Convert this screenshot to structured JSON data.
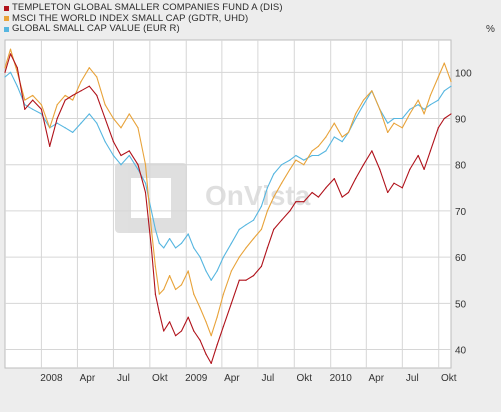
{
  "legend": [
    {
      "label": "TEMPLETON GLOBAL SMALLER COMPANIES FUND A (DIS)",
      "color": "#b0121b"
    },
    {
      "label": "MSCI THE WORLD INDEX SMALL CAP (GDTR, UHD)",
      "color": "#e8a33a"
    },
    {
      "label": "GLOBAL SMALL CAP VALUE (EUR R)",
      "color": "#56b6e0"
    }
  ],
  "unit_label": "%",
  "watermark": "OnVista",
  "chart_data": {
    "type": "line",
    "title": "",
    "xlabel": "",
    "ylabel": "%",
    "x_ticks": [
      "2008",
      "Apr",
      "Jul",
      "Okt",
      "2009",
      "Apr",
      "Jul",
      "Okt",
      "2010",
      "Apr",
      "Jul",
      "Okt"
    ],
    "y_ticks": [
      40,
      50,
      60,
      70,
      80,
      90,
      100
    ],
    "ylim": [
      36,
      107
    ],
    "x_range": [
      "2007-10-01",
      "2010-11-01"
    ],
    "grid": true,
    "legend_position": "top-left",
    "series": [
      {
        "name": "TEMPLETON GLOBAL SMALLER COMPANIES FUND A (DIS)",
        "color": "#b0121b",
        "points": [
          [
            "2007-10-01",
            100
          ],
          [
            "2007-10-15",
            104
          ],
          [
            "2007-11-01",
            101
          ],
          [
            "2007-11-20",
            92
          ],
          [
            "2007-12-10",
            94
          ],
          [
            "2008-01-01",
            92
          ],
          [
            "2008-01-22",
            84
          ],
          [
            "2008-02-10",
            90
          ],
          [
            "2008-03-01",
            94
          ],
          [
            "2008-03-20",
            95
          ],
          [
            "2008-04-10",
            96
          ],
          [
            "2008-05-01",
            97
          ],
          [
            "2008-05-20",
            95
          ],
          [
            "2008-06-10",
            90
          ],
          [
            "2008-07-01",
            85
          ],
          [
            "2008-07-20",
            82
          ],
          [
            "2008-08-10",
            83
          ],
          [
            "2008-09-01",
            80
          ],
          [
            "2008-09-20",
            74
          ],
          [
            "2008-10-05",
            62
          ],
          [
            "2008-10-15",
            52
          ],
          [
            "2008-10-25",
            48
          ],
          [
            "2008-11-05",
            44
          ],
          [
            "2008-11-20",
            46
          ],
          [
            "2008-12-05",
            43
          ],
          [
            "2008-12-20",
            44
          ],
          [
            "2009-01-06",
            47
          ],
          [
            "2009-01-20",
            44
          ],
          [
            "2009-02-05",
            42
          ],
          [
            "2009-02-20",
            39
          ],
          [
            "2009-03-05",
            37
          ],
          [
            "2009-03-20",
            41
          ],
          [
            "2009-04-05",
            45
          ],
          [
            "2009-04-25",
            50
          ],
          [
            "2009-05-15",
            55
          ],
          [
            "2009-06-01",
            55
          ],
          [
            "2009-06-20",
            56
          ],
          [
            "2009-07-10",
            58
          ],
          [
            "2009-07-25",
            62
          ],
          [
            "2009-08-10",
            66
          ],
          [
            "2009-08-30",
            68
          ],
          [
            "2009-09-20",
            70
          ],
          [
            "2009-10-05",
            72
          ],
          [
            "2009-10-25",
            72
          ],
          [
            "2009-11-15",
            74
          ],
          [
            "2009-12-01",
            73
          ],
          [
            "2009-12-20",
            75
          ],
          [
            "2010-01-10",
            77
          ],
          [
            "2010-01-30",
            73
          ],
          [
            "2010-02-15",
            74
          ],
          [
            "2010-03-05",
            77
          ],
          [
            "2010-03-25",
            80
          ],
          [
            "2010-04-15",
            83
          ],
          [
            "2010-05-05",
            79
          ],
          [
            "2010-05-25",
            74
          ],
          [
            "2010-06-10",
            76
          ],
          [
            "2010-07-01",
            75
          ],
          [
            "2010-07-20",
            79
          ],
          [
            "2010-08-10",
            82
          ],
          [
            "2010-08-25",
            79
          ],
          [
            "2010-09-10",
            83
          ],
          [
            "2010-09-30",
            88
          ],
          [
            "2010-10-15",
            90
          ],
          [
            "2010-11-01",
            91
          ]
        ]
      },
      {
        "name": "MSCI THE WORLD INDEX SMALL CAP (GDTR, UHD)",
        "color": "#e8a33a",
        "points": [
          [
            "2007-10-01",
            101
          ],
          [
            "2007-10-15",
            105
          ],
          [
            "2007-11-01",
            100
          ],
          [
            "2007-11-20",
            94
          ],
          [
            "2007-12-10",
            95
          ],
          [
            "2008-01-01",
            93
          ],
          [
            "2008-01-22",
            88
          ],
          [
            "2008-02-10",
            93
          ],
          [
            "2008-03-01",
            95
          ],
          [
            "2008-03-20",
            94
          ],
          [
            "2008-04-10",
            98
          ],
          [
            "2008-05-01",
            101
          ],
          [
            "2008-05-20",
            99
          ],
          [
            "2008-06-10",
            93
          ],
          [
            "2008-07-01",
            90
          ],
          [
            "2008-07-20",
            88
          ],
          [
            "2008-08-10",
            91
          ],
          [
            "2008-09-01",
            88
          ],
          [
            "2008-09-20",
            80
          ],
          [
            "2008-10-05",
            66
          ],
          [
            "2008-10-15",
            58
          ],
          [
            "2008-10-25",
            52
          ],
          [
            "2008-11-05",
            53
          ],
          [
            "2008-11-20",
            56
          ],
          [
            "2008-12-05",
            53
          ],
          [
            "2008-12-20",
            54
          ],
          [
            "2009-01-06",
            57
          ],
          [
            "2009-01-20",
            52
          ],
          [
            "2009-02-05",
            49
          ],
          [
            "2009-02-20",
            46
          ],
          [
            "2009-03-05",
            43
          ],
          [
            "2009-03-20",
            47
          ],
          [
            "2009-04-05",
            52
          ],
          [
            "2009-04-25",
            57
          ],
          [
            "2009-05-15",
            60
          ],
          [
            "2009-06-01",
            62
          ],
          [
            "2009-06-20",
            64
          ],
          [
            "2009-07-10",
            66
          ],
          [
            "2009-07-25",
            70
          ],
          [
            "2009-08-10",
            73
          ],
          [
            "2009-08-30",
            76
          ],
          [
            "2009-09-20",
            79
          ],
          [
            "2009-10-05",
            81
          ],
          [
            "2009-10-25",
            80
          ],
          [
            "2009-11-15",
            83
          ],
          [
            "2009-12-01",
            84
          ],
          [
            "2009-12-20",
            86
          ],
          [
            "2010-01-10",
            89
          ],
          [
            "2010-01-30",
            86
          ],
          [
            "2010-02-15",
            87
          ],
          [
            "2010-03-05",
            91
          ],
          [
            "2010-03-25",
            94
          ],
          [
            "2010-04-15",
            96
          ],
          [
            "2010-05-05",
            92
          ],
          [
            "2010-05-25",
            87
          ],
          [
            "2010-06-10",
            89
          ],
          [
            "2010-07-01",
            88
          ],
          [
            "2010-07-20",
            91
          ],
          [
            "2010-08-10",
            94
          ],
          [
            "2010-08-25",
            91
          ],
          [
            "2010-09-10",
            95
          ],
          [
            "2010-09-30",
            99
          ],
          [
            "2010-10-15",
            102
          ],
          [
            "2010-11-01",
            98
          ]
        ]
      },
      {
        "name": "GLOBAL SMALL CAP VALUE (EUR R)",
        "color": "#56b6e0",
        "points": [
          [
            "2007-10-01",
            99
          ],
          [
            "2007-10-15",
            100
          ],
          [
            "2007-11-01",
            97
          ],
          [
            "2007-11-20",
            93
          ],
          [
            "2007-12-10",
            92
          ],
          [
            "2008-01-01",
            91
          ],
          [
            "2008-01-22",
            88
          ],
          [
            "2008-02-10",
            89
          ],
          [
            "2008-03-01",
            88
          ],
          [
            "2008-03-20",
            87
          ],
          [
            "2008-04-10",
            89
          ],
          [
            "2008-05-01",
            91
          ],
          [
            "2008-05-20",
            89
          ],
          [
            "2008-06-10",
            85
          ],
          [
            "2008-07-01",
            82
          ],
          [
            "2008-07-20",
            80
          ],
          [
            "2008-08-10",
            82
          ],
          [
            "2008-09-01",
            79
          ],
          [
            "2008-09-20",
            76
          ],
          [
            "2008-10-05",
            70
          ],
          [
            "2008-10-15",
            66
          ],
          [
            "2008-10-25",
            63
          ],
          [
            "2008-11-05",
            62
          ],
          [
            "2008-11-20",
            64
          ],
          [
            "2008-12-05",
            62
          ],
          [
            "2008-12-20",
            63
          ],
          [
            "2009-01-06",
            65
          ],
          [
            "2009-01-20",
            62
          ],
          [
            "2009-02-05",
            60
          ],
          [
            "2009-02-20",
            57
          ],
          [
            "2009-03-05",
            55
          ],
          [
            "2009-03-20",
            57
          ],
          [
            "2009-04-05",
            60
          ],
          [
            "2009-04-25",
            63
          ],
          [
            "2009-05-15",
            66
          ],
          [
            "2009-06-01",
            67
          ],
          [
            "2009-06-20",
            68
          ],
          [
            "2009-07-10",
            71
          ],
          [
            "2009-07-25",
            75
          ],
          [
            "2009-08-10",
            78
          ],
          [
            "2009-08-30",
            80
          ],
          [
            "2009-09-20",
            81
          ],
          [
            "2009-10-05",
            82
          ],
          [
            "2009-10-25",
            81
          ],
          [
            "2009-11-15",
            82
          ],
          [
            "2009-12-01",
            82
          ],
          [
            "2009-12-20",
            83
          ],
          [
            "2010-01-10",
            86
          ],
          [
            "2010-01-30",
            85
          ],
          [
            "2010-02-15",
            87
          ],
          [
            "2010-03-05",
            90
          ],
          [
            "2010-03-25",
            93
          ],
          [
            "2010-04-15",
            96
          ],
          [
            "2010-05-05",
            92
          ],
          [
            "2010-05-25",
            89
          ],
          [
            "2010-06-10",
            90
          ],
          [
            "2010-07-01",
            90
          ],
          [
            "2010-07-20",
            92
          ],
          [
            "2010-08-10",
            93
          ],
          [
            "2010-08-25",
            92
          ],
          [
            "2010-09-10",
            93
          ],
          [
            "2010-09-30",
            94
          ],
          [
            "2010-10-15",
            96
          ],
          [
            "2010-11-01",
            97
          ]
        ]
      }
    ]
  }
}
